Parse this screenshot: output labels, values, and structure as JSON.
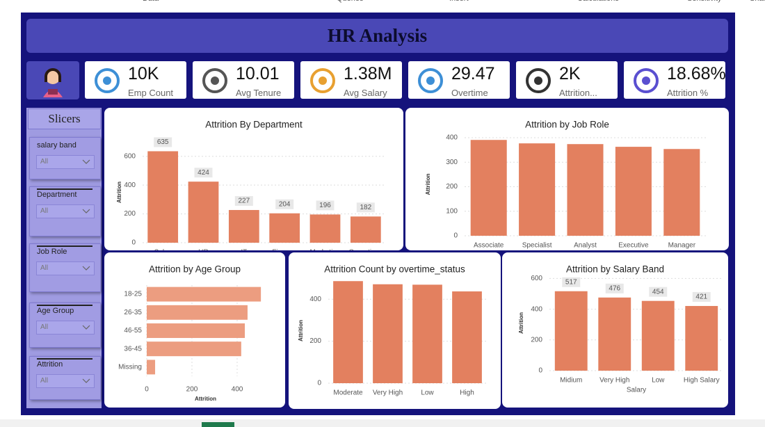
{
  "ribbon": [
    "Data",
    "Queries",
    "Insert",
    "Calculations",
    "Sensitivity",
    "Shar"
  ],
  "header": {
    "title": "HR Analysis"
  },
  "kpis": [
    {
      "value": "10K",
      "label": "Emp Count"
    },
    {
      "value": "10.01",
      "label": "Avg Tenure"
    },
    {
      "value": "1.38M",
      "label": "Avg Salary"
    },
    {
      "value": "29.47",
      "label": "Overtime"
    },
    {
      "value": "2K",
      "label": "Attrition..."
    },
    {
      "value": "18.68%",
      "label": "Attrition %"
    }
  ],
  "slicers": {
    "title": "Slicers",
    "items": [
      {
        "label": "salary band",
        "selection": "All"
      },
      {
        "label": "Department",
        "selection": "All"
      },
      {
        "label": "Job Role",
        "selection": "All"
      },
      {
        "label": "Age Group",
        "selection": "All"
      },
      {
        "label": "Attrition",
        "selection": "All"
      }
    ]
  },
  "chart_data": [
    {
      "type": "bar",
      "title": "Attrition By Department",
      "ylabel": "Attrition",
      "categories": [
        "Sales",
        "HR",
        "IT",
        "Finance",
        "Marketing",
        "Operations"
      ],
      "values": [
        635,
        424,
        227,
        204,
        196,
        182
      ],
      "color": "#e3805f",
      "ylim": [
        0,
        700
      ],
      "yticks": [
        0,
        200,
        400,
        600
      ],
      "grid": true,
      "data_labels": true
    },
    {
      "type": "bar",
      "title": "Attrition by Job Role",
      "ylabel": "Attrition",
      "categories": [
        "Associate",
        "Specialist",
        "Analyst",
        "Executive",
        "Manager"
      ],
      "values": [
        391,
        377,
        374,
        363,
        354
      ],
      "color": "#e3805f",
      "ylim": [
        0,
        420
      ],
      "yticks": [
        0,
        100,
        200,
        300,
        400
      ],
      "grid": true,
      "data_labels": false
    },
    {
      "type": "barh",
      "title": "Attrition by Age Group",
      "xlabel": "Attrition",
      "categories": [
        "18-25",
        "26-35",
        "46-55",
        "36-45",
        "Missing"
      ],
      "values": [
        505,
        446,
        434,
        418,
        37
      ],
      "color": "#ec9d80",
      "xlim": [
        0,
        520
      ],
      "xticks": [
        0,
        200,
        400
      ],
      "grid": true,
      "data_labels": false
    },
    {
      "type": "bar",
      "title": "Attrition Count by overtime_status",
      "ylabel": "Attrition",
      "categories": [
        "Moderate",
        "Very High",
        "Low",
        "High"
      ],
      "values": [
        486,
        471,
        469,
        437
      ],
      "color": "#e3805f",
      "ylim": [
        0,
        500
      ],
      "yticks": [
        0,
        200,
        400
      ],
      "grid": true,
      "data_labels": false
    },
    {
      "type": "bar",
      "title": "Attrition by Salary Band",
      "ylabel": "Attrition",
      "xlabel": "Salary",
      "categories": [
        "Midium",
        "Very High",
        "Low",
        "High Salary"
      ],
      "values": [
        517,
        476,
        454,
        421
      ],
      "color": "#e3805f",
      "ylim": [
        0,
        620
      ],
      "yticks": [
        0,
        200,
        400,
        600
      ],
      "grid": true,
      "data_labels": true
    }
  ]
}
